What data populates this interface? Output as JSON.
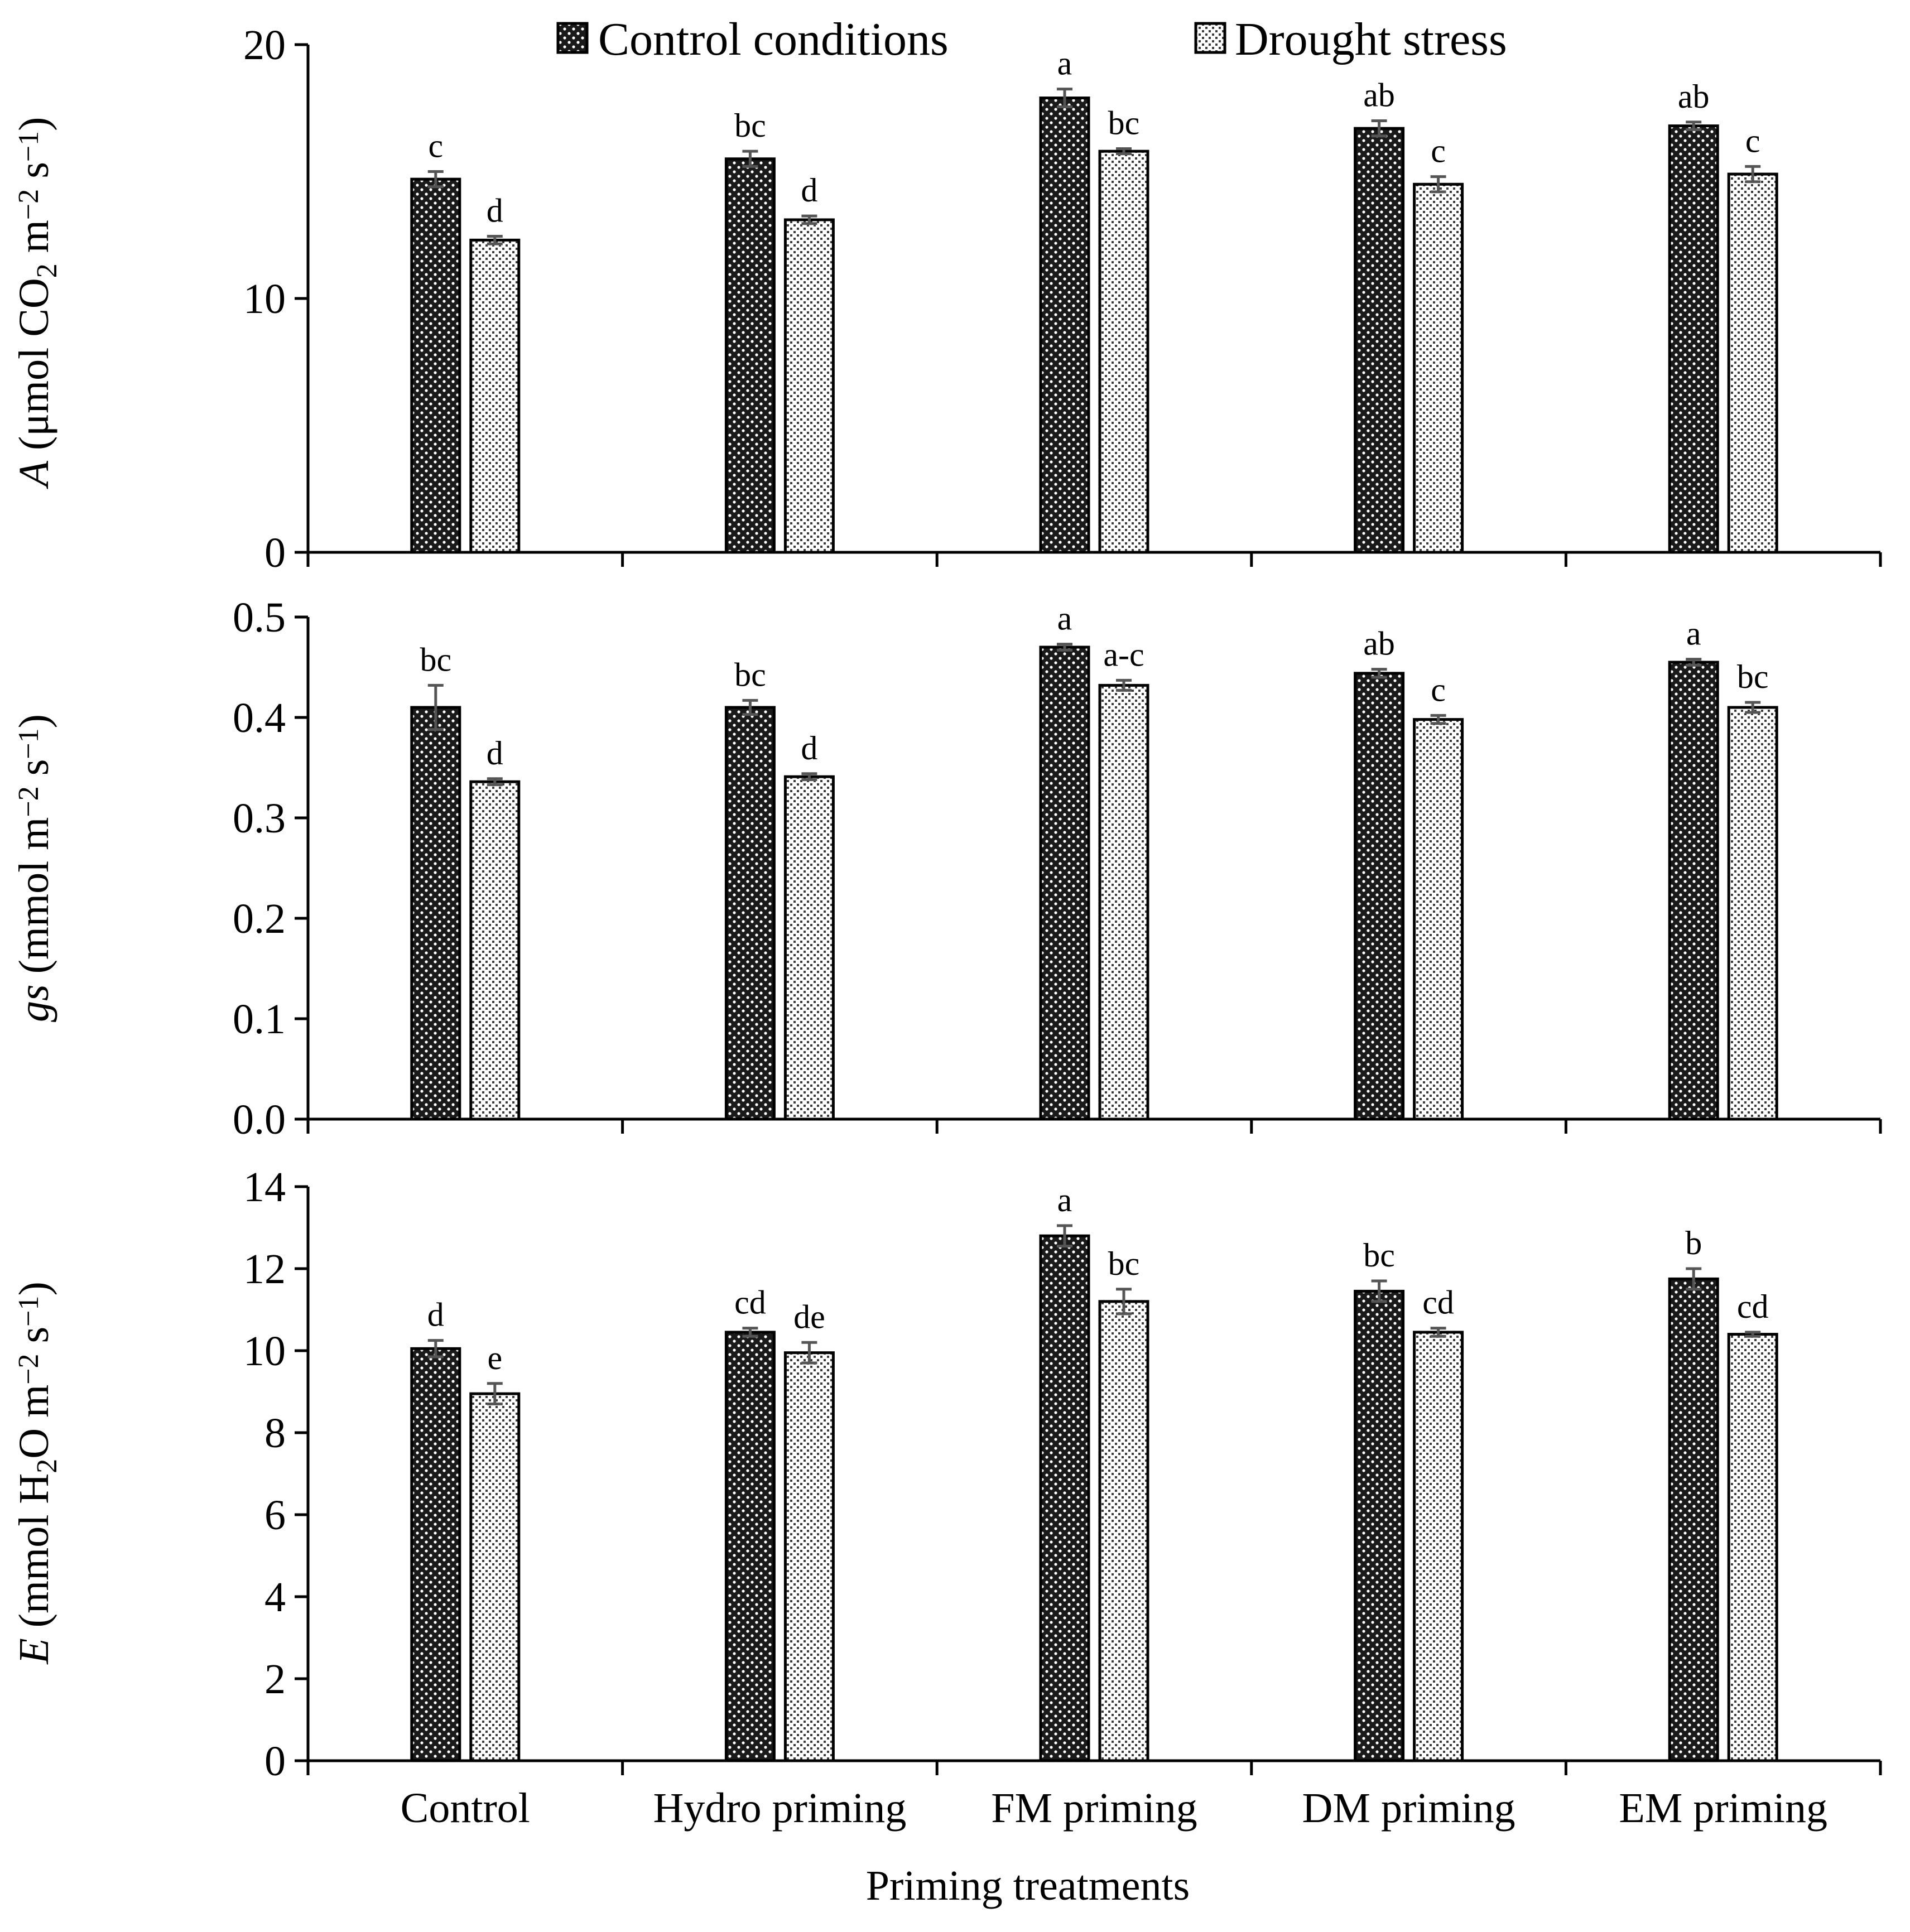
{
  "legend": {
    "control_label": "Control conditions",
    "drought_label": "Drought stress"
  },
  "colors": {
    "control_fill": "#1a1a1a",
    "control_dot": "#ffffff",
    "drought_fill": "#ffffff",
    "drought_dot": "#3a3a3a",
    "axis": "#000000",
    "error_bar": "#555555"
  },
  "chart_data": [
    {
      "type": "bar",
      "panel": "A",
      "ylabel_italic": "A",
      "ylabel_prefix": " (μmol CO",
      "ylabel_sub": "2",
      "ylabel_mid": " m",
      "ylabel_sup1": "−2",
      "ylabel_s": " s",
      "ylabel_sup2": "−1",
      "ylabel_close": ")",
      "ylim": [
        0,
        20
      ],
      "yticks": [
        0,
        10,
        20
      ],
      "ytick_labels": [
        "0",
        "10",
        "20"
      ],
      "categories": [
        "Control",
        "Hydro priming",
        "FM priming",
        "DM priming",
        "EM priming"
      ],
      "series": [
        {
          "name": "Control conditions",
          "values": [
            14.7,
            15.5,
            17.9,
            16.7,
            16.8
          ],
          "errors": [
            0.3,
            0.3,
            0.35,
            0.3,
            0.15
          ],
          "letters": [
            "c",
            "bc",
            "a",
            "ab",
            "ab"
          ]
        },
        {
          "name": "Drought stress",
          "values": [
            12.3,
            13.1,
            15.8,
            14.5,
            14.9
          ],
          "errors": [
            0.15,
            0.15,
            0.1,
            0.3,
            0.3
          ],
          "letters": [
            "d",
            "d",
            "bc",
            "c",
            "c"
          ]
        }
      ]
    },
    {
      "type": "bar",
      "panel": "gs",
      "ylabel_italic": "gs",
      "ylabel_prefix": " (mmol m",
      "ylabel_sub": "",
      "ylabel_mid": "",
      "ylabel_sup1": "−2",
      "ylabel_s": " s",
      "ylabel_sup2": "−1",
      "ylabel_close": ")",
      "ylim": [
        0,
        0.5
      ],
      "yticks": [
        0,
        0.1,
        0.2,
        0.3,
        0.4,
        0.5
      ],
      "ytick_labels": [
        "0.0",
        "0.1",
        "0.2",
        "0.3",
        "0.4",
        "0.5"
      ],
      "categories": [
        "Control",
        "Hydro priming",
        "FM priming",
        "DM priming",
        "EM priming"
      ],
      "series": [
        {
          "name": "Control conditions",
          "values": [
            0.41,
            0.41,
            0.47,
            0.444,
            0.455
          ],
          "errors": [
            0.022,
            0.007,
            0.003,
            0.004,
            0.003
          ],
          "letters": [
            "bc",
            "bc",
            "a",
            "ab",
            "a"
          ]
        },
        {
          "name": "Drought stress",
          "values": [
            0.336,
            0.341,
            0.432,
            0.398,
            0.41
          ],
          "errors": [
            0.003,
            0.003,
            0.005,
            0.004,
            0.005
          ],
          "letters": [
            "d",
            "d",
            "a-c",
            "c",
            "bc"
          ]
        }
      ]
    },
    {
      "type": "bar",
      "panel": "E",
      "ylabel_italic": "E",
      "ylabel_prefix": " (mmol H",
      "ylabel_sub": "2",
      "ylabel_mid": "O m",
      "ylabel_sup1": "−2",
      "ylabel_s": " s",
      "ylabel_sup2": "−1",
      "ylabel_close": ")",
      "ylim": [
        0,
        14
      ],
      "yticks": [
        0,
        2,
        4,
        6,
        8,
        10,
        12,
        14
      ],
      "ytick_labels": [
        "0",
        "2",
        "4",
        "6",
        "8",
        "10",
        "12",
        "14"
      ],
      "categories": [
        "Control",
        "Hydro priming",
        "FM priming",
        "DM priming",
        "EM priming"
      ],
      "series": [
        {
          "name": "Control conditions",
          "values": [
            10.05,
            10.45,
            12.8,
            11.45,
            11.75
          ],
          "errors": [
            0.2,
            0.1,
            0.25,
            0.25,
            0.25
          ],
          "letters": [
            "d",
            "cd",
            "a",
            "bc",
            "b"
          ]
        },
        {
          "name": "Drought stress",
          "values": [
            8.95,
            9.95,
            11.2,
            10.45,
            10.4
          ],
          "errors": [
            0.25,
            0.25,
            0.3,
            0.1,
            0.05
          ],
          "letters": [
            "e",
            "de",
            "bc",
            "cd",
            "cd"
          ]
        }
      ]
    }
  ],
  "xlabel": "Priming treatments"
}
